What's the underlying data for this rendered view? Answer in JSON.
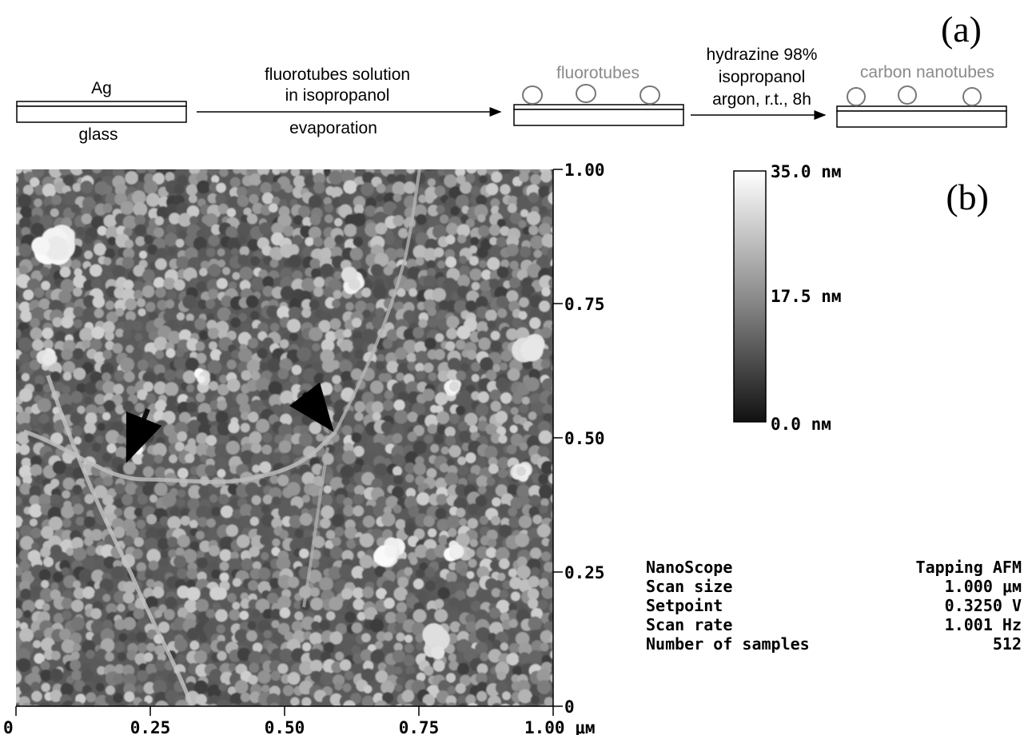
{
  "panel_a": {
    "label": "(a)",
    "substrate_top": "Ag",
    "substrate_bottom": "glass",
    "step1_line1": "fluorotubes solution",
    "step1_line2": "in isopropanol",
    "step1_below": "evaporation",
    "stage2_label": "fluorotubes",
    "step2_line1": "hydrazine 98%",
    "step2_line2": "isopropanol",
    "step2_line3": "argon, r.t., 8h",
    "stage3_label": "carbon nanotubes"
  },
  "panel_b": {
    "label": "(b)",
    "x_ticks": [
      "0",
      "0.25",
      "0.50",
      "0.75",
      "1.00 μм"
    ],
    "y_ticks": [
      "1.00",
      "0.75",
      "0.50",
      "0.25",
      "0"
    ],
    "colorbar": {
      "max_label": "35.0 nм",
      "mid_label": "17.5 nм",
      "min_label": "0.0 nм"
    },
    "info": [
      {
        "key": "NanoScope",
        "value": "Tapping AFM"
      },
      {
        "key": "Scan size",
        "value": "1.000 μм"
      },
      {
        "key": "Setpoint",
        "value": "0.3250 V"
      },
      {
        "key": "Scan rate",
        "value": "1.001 Hz"
      },
      {
        "key": "Number of samples",
        "value": "512"
      }
    ]
  },
  "colors": {
    "grey_label": "#8a8a8a",
    "line": "#000000"
  }
}
